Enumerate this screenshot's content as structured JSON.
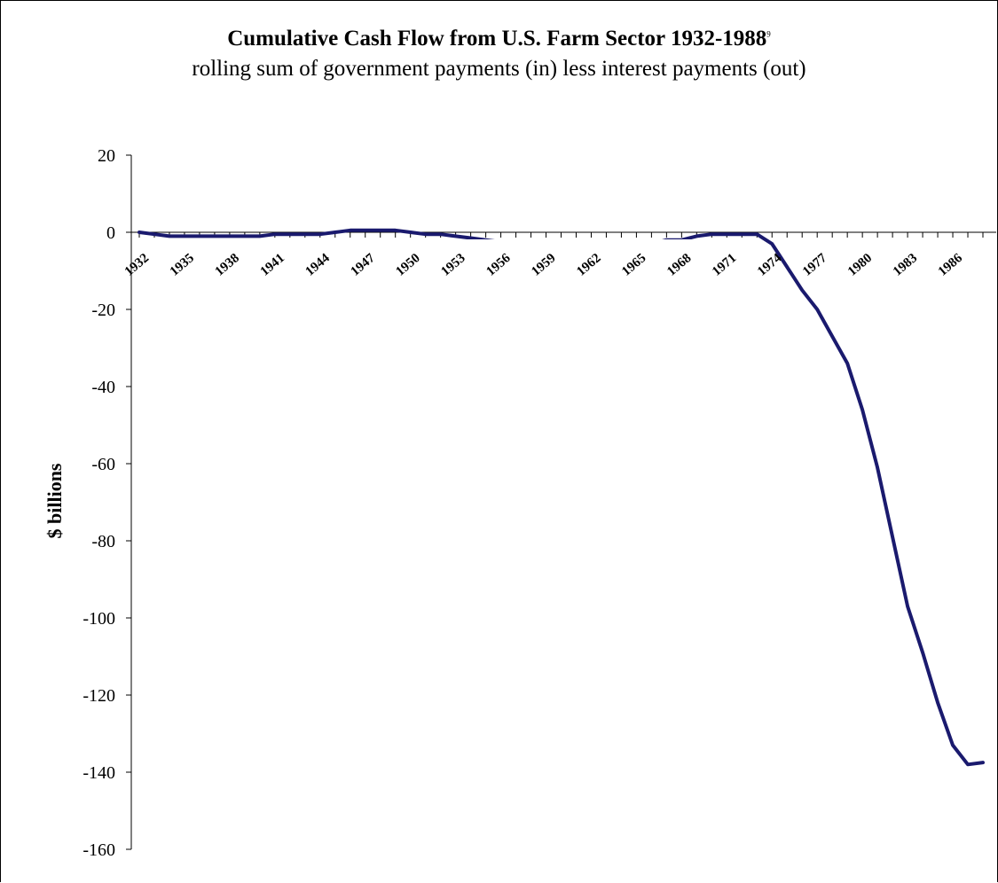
{
  "chart_data": {
    "type": "line",
    "title": "Cumulative Cash Flow from U.S. Farm Sector 1932-1988",
    "title_footnote": "9",
    "subtitle": "rolling sum of government payments (in) less interest payments (out)",
    "xlabel": "",
    "ylabel": "$ billions",
    "ylim": [
      -160,
      20
    ],
    "yticks": [
      20,
      0,
      -20,
      -40,
      -60,
      -80,
      -100,
      -120,
      -140,
      -160
    ],
    "xtick_labels": [
      "1932",
      "1935",
      "1938",
      "1941",
      "1944",
      "1947",
      "1950",
      "1953",
      "1956",
      "1959",
      "1962",
      "1965",
      "1968",
      "1971",
      "1974",
      "1977",
      "1980",
      "1983",
      "1986"
    ],
    "grid": false,
    "legend": "none",
    "line_color": "#1a1a6e",
    "series": [
      {
        "x": [
          1932,
          1933,
          1934,
          1935,
          1936,
          1937,
          1938,
          1939,
          1940,
          1941,
          1942,
          1943,
          1944,
          1945,
          1946,
          1947,
          1948,
          1949,
          1950,
          1951,
          1952,
          1953,
          1954,
          1955,
          1956,
          1957,
          1958,
          1959,
          1960,
          1961,
          1962,
          1963,
          1964,
          1965,
          1966,
          1967,
          1968,
          1969,
          1970,
          1971,
          1972,
          1973,
          1974,
          1975,
          1976,
          1977,
          1978,
          1979,
          1980,
          1981,
          1982,
          1983,
          1984,
          1985,
          1986,
          1987,
          1988
        ],
        "values": [
          0,
          -0.5,
          -1,
          -1,
          -1,
          -1,
          -1,
          -1,
          -1,
          -0.5,
          -0.5,
          -0.5,
          -0.5,
          0,
          0.5,
          0.5,
          0.5,
          0.5,
          0,
          -0.5,
          -0.5,
          -1,
          -1.5,
          -2,
          -2.5,
          -2.5,
          -2.5,
          -2.5,
          -3,
          -3.5,
          -3.5,
          -3.5,
          -3.5,
          -3,
          -3,
          -2,
          -2,
          -1,
          -0.5,
          -0.5,
          -0.5,
          -0.5,
          -3,
          -9,
          -15,
          -20,
          -27,
          -34,
          -46,
          -61,
          -79,
          -97,
          -109,
          -122,
          -133,
          -138,
          -137.5
        ]
      }
    ]
  }
}
